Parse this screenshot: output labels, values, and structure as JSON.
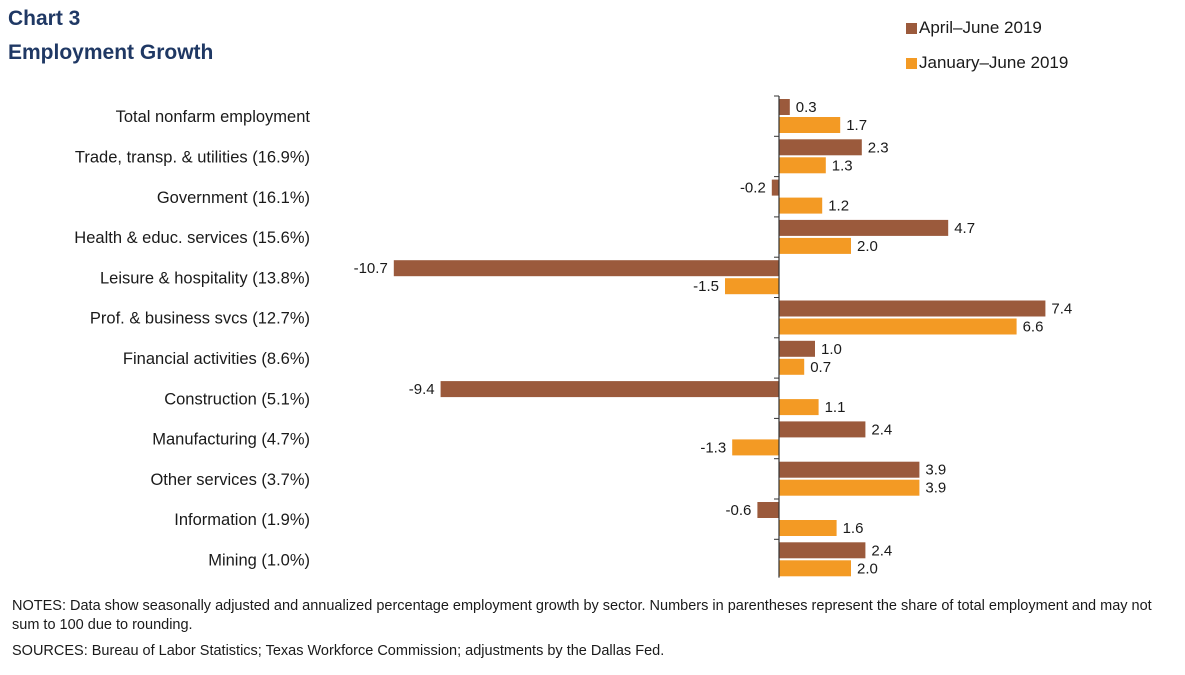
{
  "title_line1": "Chart 3",
  "title_line2": "Employment Growth",
  "notes": "NOTES: Data show seasonally adjusted and annualized percentage employment growth by sector. Numbers in parentheses represent the share of total employment and may not sum to 100 due to rounding.",
  "sources": "SOURCES: Bureau of Labor Statistics; Texas Workforce Commission; adjustments by the Dallas Fed.",
  "colors": {
    "series1": "#9b5a3c",
    "series2": "#f39a24"
  },
  "chart_data": {
    "type": "bar",
    "orientation": "horizontal",
    "title": "Employment Growth",
    "categories": [
      "Total nonfarm employment",
      "Trade, transp. & utilities (16.9%)",
      "Government (16.1%)",
      "Health & educ. services (15.6%)",
      "Leisure & hospitality (13.8%)",
      "Prof. & business svcs (12.7%)",
      "Financial activities (8.6%)",
      "Construction (5.1%)",
      "Manufacturing (4.7%)",
      "Other services (3.7%)",
      "Information (1.9%)",
      "Mining (1.0%)"
    ],
    "series": [
      {
        "name": "April–June 2019",
        "values": [
          0.3,
          2.3,
          -0.2,
          4.7,
          -10.7,
          7.4,
          1.0,
          -9.4,
          2.4,
          3.9,
          -0.6,
          2.4
        ]
      },
      {
        "name": "January–June 2019",
        "values": [
          1.7,
          1.3,
          1.2,
          2.0,
          -1.5,
          6.6,
          0.7,
          1.1,
          -1.3,
          3.9,
          1.6,
          2.0
        ]
      }
    ],
    "xlim": [
      -10.7,
      7.4
    ],
    "legend": "top-right",
    "grid": false,
    "data_labels": true
  }
}
